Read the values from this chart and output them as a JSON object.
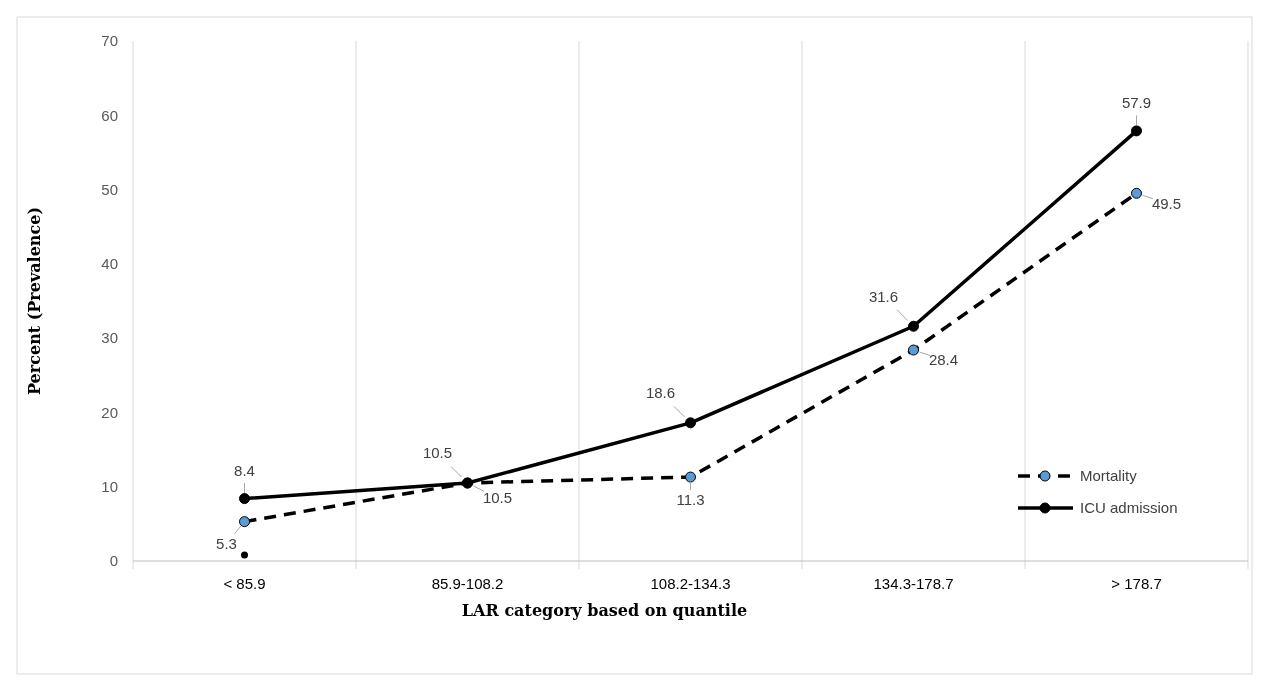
{
  "chart_data": {
    "type": "line",
    "xlabel": "LAR category based on quantile",
    "ylabel": "Percent (Prevalence)",
    "categories": [
      "< 85.9",
      "85.9-108.2",
      "108.2-134.3",
      "134.3-178.7",
      "> 178.7"
    ],
    "series": [
      {
        "name": "Mortality",
        "color": "#5b9bd5",
        "line_style": "dashed",
        "values": [
          5.3,
          10.5,
          11.3,
          28.4,
          49.5
        ]
      },
      {
        "name": "ICU admission",
        "color": "#000000",
        "line_style": "solid",
        "values": [
          8.4,
          10.5,
          18.6,
          31.6,
          57.9
        ]
      },
      {
        "type": "scatter",
        "color": "#000000",
        "values": [
          0.8,
          null,
          null,
          null,
          null
        ],
        "value_labels": [
          null,
          null,
          null,
          null,
          null
        ]
      }
    ],
    "ylim": [
      0,
      70
    ],
    "yticks": [
      0,
      10,
      20,
      30,
      40,
      50,
      60,
      70
    ],
    "grid": "x",
    "legend": "bottom right",
    "marker": "circle",
    "data_labels": true
  }
}
